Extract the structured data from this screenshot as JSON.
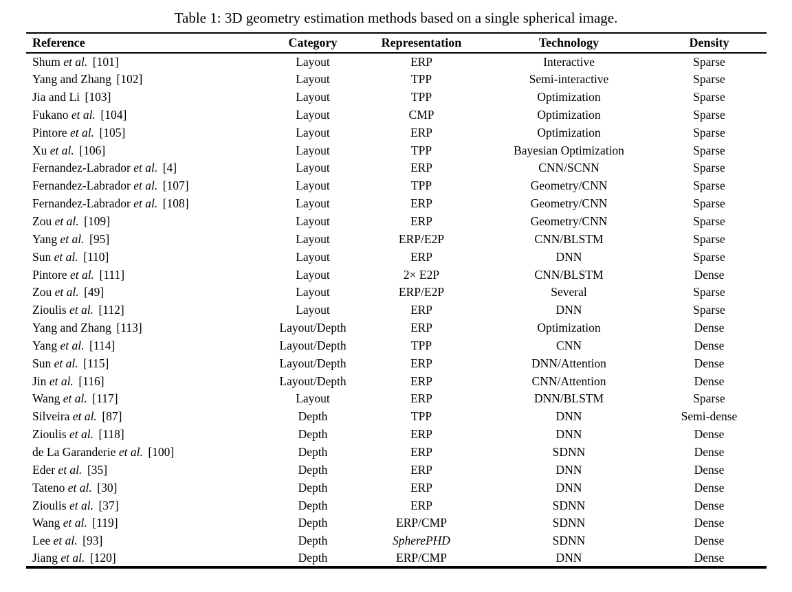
{
  "title": "Table 1: 3D geometry estimation methods based on a single spherical image.",
  "colors": {
    "background": "#ffffff",
    "text": "#000000",
    "rule": "#000000"
  },
  "table": {
    "columns": [
      "Reference",
      "Category",
      "Representation",
      "Technology",
      "Density"
    ],
    "rows": [
      {
        "author": "Shum",
        "etal": "et al.",
        "cite": "[101]",
        "category": "Layout",
        "representation": "ERP",
        "technology": "Interactive",
        "density": "Sparse"
      },
      {
        "author": "Yang and Zhang",
        "etal": "",
        "cite": "[102]",
        "category": "Layout",
        "representation": "TPP",
        "technology": "Semi-interactive",
        "density": "Sparse"
      },
      {
        "author": "Jia and Li",
        "etal": "",
        "cite": "[103]",
        "category": "Layout",
        "representation": "TPP",
        "technology": "Optimization",
        "density": "Sparse"
      },
      {
        "author": "Fukano",
        "etal": "et al.",
        "cite": "[104]",
        "category": "Layout",
        "representation": "CMP",
        "technology": "Optimization",
        "density": "Sparse"
      },
      {
        "author": "Pintore",
        "etal": "et al.",
        "cite": "[105]",
        "category": "Layout",
        "representation": "ERP",
        "technology": "Optimization",
        "density": "Sparse"
      },
      {
        "author": "Xu",
        "etal": "et al.",
        "cite": "[106]",
        "category": "Layout",
        "representation": "TPP",
        "technology": "Bayesian Optimization",
        "density": "Sparse"
      },
      {
        "author": "Fernandez-Labrador",
        "etal": "et al.",
        "cite": "[4]",
        "category": "Layout",
        "representation": "ERP",
        "technology": "CNN/SCNN",
        "density": "Sparse"
      },
      {
        "author": "Fernandez-Labrador",
        "etal": "et al.",
        "cite": "[107]",
        "category": "Layout",
        "representation": "TPP",
        "technology": "Geometry/CNN",
        "density": "Sparse"
      },
      {
        "author": "Fernandez-Labrador",
        "etal": "et al.",
        "cite": "[108]",
        "category": "Layout",
        "representation": "ERP",
        "technology": "Geometry/CNN",
        "density": "Sparse"
      },
      {
        "author": "Zou",
        "etal": "et al.",
        "cite": "[109]",
        "category": "Layout",
        "representation": "ERP",
        "technology": "Geometry/CNN",
        "density": "Sparse"
      },
      {
        "author": "Yang",
        "etal": "et al.",
        "cite": "[95]",
        "category": "Layout",
        "representation": "ERP/E2P",
        "technology": "CNN/BLSTM",
        "density": "Sparse"
      },
      {
        "author": "Sun",
        "etal": "et al.",
        "cite": "[110]",
        "category": "Layout",
        "representation": "ERP",
        "technology": "DNN",
        "density": "Sparse"
      },
      {
        "author": "Pintore",
        "etal": "et al.",
        "cite": "[111]",
        "category": "Layout",
        "representation": "2× E2P",
        "technology": "CNN/BLSTM",
        "density": "Dense"
      },
      {
        "author": "Zou",
        "etal": "et al.",
        "cite": "[49]",
        "category": "Layout",
        "representation": "ERP/E2P",
        "technology": "Several",
        "density": "Sparse"
      },
      {
        "author": "Zioulis",
        "etal": "et al.",
        "cite": "[112]",
        "category": "Layout",
        "representation": "ERP",
        "technology": "DNN",
        "density": "Sparse"
      },
      {
        "author": "Yang and Zhang",
        "etal": "",
        "cite": "[113]",
        "category": "Layout/Depth",
        "representation": "ERP",
        "technology": "Optimization",
        "density": "Dense"
      },
      {
        "author": "Yang",
        "etal": "et al.",
        "cite": "[114]",
        "category": "Layout/Depth",
        "representation": "TPP",
        "technology": "CNN",
        "density": "Dense"
      },
      {
        "author": "Sun",
        "etal": "et al.",
        "cite": "[115]",
        "category": "Layout/Depth",
        "representation": "ERP",
        "technology": "DNN/Attention",
        "density": "Dense"
      },
      {
        "author": "Jin",
        "etal": "et al.",
        "cite": "[116]",
        "category": "Layout/Depth",
        "representation": "ERP",
        "technology": "CNN/Attention",
        "density": "Dense"
      },
      {
        "author": "Wang",
        "etal": "et al.",
        "cite": "[117]",
        "category": "Layout",
        "representation": "ERP",
        "technology": "DNN/BLSTM",
        "density": "Sparse"
      },
      {
        "author": "Silveira",
        "etal": "et al.",
        "cite": "[87]",
        "category": "Depth",
        "representation": "TPP",
        "technology": "DNN",
        "density": "Semi-dense"
      },
      {
        "author": "Zioulis",
        "etal": "et al.",
        "cite": "[118]",
        "category": "Depth",
        "representation": "ERP",
        "technology": "DNN",
        "density": "Dense"
      },
      {
        "author": "de La Garanderie",
        "etal": "et al.",
        "cite": "[100]",
        "category": "Depth",
        "representation": "ERP",
        "technology": "SDNN",
        "density": "Dense"
      },
      {
        "author": "Eder",
        "etal": "et al.",
        "cite": "[35]",
        "category": "Depth",
        "representation": "ERP",
        "technology": "DNN",
        "density": "Dense"
      },
      {
        "author": "Tateno",
        "etal": "et al.",
        "cite": "[30]",
        "category": "Depth",
        "representation": "ERP",
        "technology": "DNN",
        "density": "Dense"
      },
      {
        "author": "Zioulis",
        "etal": "et al.",
        "cite": "[37]",
        "category": "Depth",
        "representation": "ERP",
        "technology": "SDNN",
        "density": "Dense"
      },
      {
        "author": "Wang",
        "etal": "et al.",
        "cite": "[119]",
        "category": "Depth",
        "representation": "ERP/CMP",
        "technology": "SDNN",
        "density": "Dense"
      },
      {
        "author": "Lee",
        "etal": "et al.",
        "cite": "[93]",
        "category": "Depth",
        "representation": "SpherePHD",
        "rep_style": "italic",
        "technology": "SDNN",
        "density": "Dense"
      },
      {
        "author": "Jiang",
        "etal": "et al.",
        "cite": "[120]",
        "category": "Depth",
        "representation": "ERP/CMP",
        "technology": "DNN",
        "density": "Dense"
      }
    ]
  }
}
